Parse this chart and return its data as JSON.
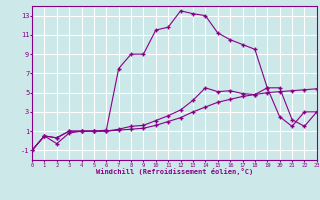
{
  "xlabel": "Windchill (Refroidissement éolien,°C)",
  "bg_color": "#cce8e8",
  "line_color": "#880088",
  "grid_color": "#ffffff",
  "xlim": [
    0,
    23
  ],
  "ylim": [
    -2,
    14
  ],
  "yticks": [
    -1,
    1,
    3,
    5,
    7,
    9,
    11,
    13
  ],
  "xticks": [
    0,
    1,
    2,
    3,
    4,
    5,
    6,
    7,
    8,
    9,
    10,
    11,
    12,
    13,
    14,
    15,
    16,
    17,
    18,
    19,
    20,
    21,
    22,
    23
  ],
  "series1_x": [
    0,
    1,
    2,
    3,
    4,
    5,
    6,
    7,
    8,
    9,
    10,
    11,
    12,
    13,
    14,
    15,
    16,
    17,
    18,
    19,
    20,
    21,
    22,
    23
  ],
  "series1_y": [
    -1.0,
    0.5,
    0.3,
    1.0,
    1.0,
    1.0,
    1.0,
    1.1,
    1.2,
    1.3,
    1.6,
    2.0,
    2.4,
    3.0,
    3.5,
    4.0,
    4.3,
    4.6,
    4.8,
    5.0,
    5.1,
    5.2,
    5.3,
    5.4
  ],
  "series2_x": [
    0,
    1,
    2,
    3,
    4,
    5,
    6,
    7,
    8,
    9,
    10,
    11,
    12,
    13,
    14,
    15,
    16,
    17,
    18,
    19,
    20,
    21,
    22,
    23
  ],
  "series2_y": [
    -1.0,
    0.5,
    0.3,
    1.0,
    1.0,
    1.0,
    1.0,
    1.2,
    1.5,
    1.6,
    2.1,
    2.6,
    3.2,
    4.2,
    5.5,
    5.1,
    5.2,
    4.9,
    4.8,
    5.5,
    5.5,
    2.2,
    1.5,
    3.0
  ],
  "series3_x": [
    0,
    1,
    2,
    3,
    4,
    5,
    6,
    7,
    8,
    9,
    10,
    11,
    12,
    13,
    14,
    15,
    16,
    17,
    18,
    19,
    20,
    21,
    22,
    23
  ],
  "series3_y": [
    -1.0,
    0.5,
    -0.3,
    0.8,
    1.0,
    1.0,
    1.1,
    7.5,
    9.0,
    9.0,
    11.5,
    11.8,
    13.5,
    13.2,
    13.0,
    11.2,
    10.5,
    10.0,
    9.5,
    5.5,
    2.5,
    1.5,
    3.0,
    3.0
  ]
}
